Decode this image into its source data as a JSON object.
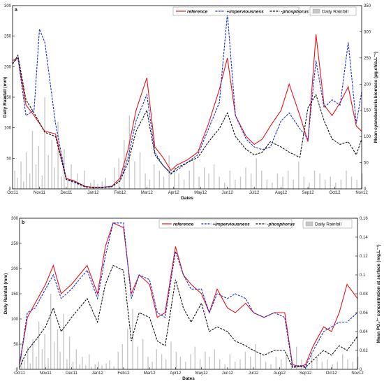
{
  "chart_data": [
    {
      "type": "line",
      "panel_label": "a",
      "xlabel": "Dates",
      "ylabel_left": "Daily Rainfall (mm)",
      "ylabel_right": "Mean cyanobacteria biomass (µg.chla.L⁻¹)",
      "x_ticks": [
        "Oct11",
        "Nov11",
        "Dec11",
        "Jan12",
        "Feb12",
        "Mar12",
        "Apr12",
        "May12",
        "Jun12",
        "Jul12",
        "Aug12",
        "Sep12",
        "Oct12",
        "Nov12"
      ],
      "ylim_left": [
        0,
        300
      ],
      "yticks_left": [
        0,
        50,
        100,
        150,
        200,
        250,
        300
      ],
      "ylim_right": [
        0,
        350
      ],
      "yticks_right": [
        0,
        50,
        100,
        150,
        200,
        250,
        300,
        350
      ],
      "legend": [
        "reference",
        "+imperviousness",
        "-phosphorus",
        "Daily Rainfall"
      ],
      "series": [
        {
          "name": "reference",
          "color": "#e8141b",
          "dash": "solid",
          "axis": "right",
          "x": [
            0,
            0.2,
            0.5,
            0.8,
            1.2,
            1.6,
            2.0,
            2.3,
            2.7,
            3.0,
            3.3,
            3.7,
            4.0,
            4.3,
            4.6,
            5.0,
            5.3,
            5.6,
            5.9,
            6.1,
            6.5,
            6.9,
            7.3,
            7.7,
            8.0,
            8.3,
            8.7,
            9.0,
            9.3,
            9.6,
            10.0,
            10.3,
            10.7,
            11.0,
            11.3,
            11.6,
            11.9,
            12.2,
            12.5,
            12.8,
            13.0
          ],
          "y": [
            245,
            250,
            160,
            140,
            110,
            105,
            20,
            15,
            5,
            3,
            3,
            5,
            20,
            75,
            150,
            212,
            80,
            60,
            35,
            45,
            55,
            70,
            125,
            190,
            250,
            140,
            100,
            85,
            95,
            120,
            150,
            200,
            140,
            90,
            295,
            160,
            140,
            165,
            195,
            120,
            110
          ]
        },
        {
          "name": "+imperviousness",
          "color": "#1a2fd0",
          "dash": "dashed",
          "axis": "right",
          "x": [
            0,
            0.2,
            0.5,
            0.8,
            1.0,
            1.2,
            1.6,
            2.0,
            2.3,
            2.7,
            3.0,
            3.3,
            3.7,
            4.0,
            4.3,
            4.6,
            5.0,
            5.3,
            5.6,
            5.9,
            6.1,
            6.5,
            6.9,
            7.3,
            7.7,
            8.0,
            8.3,
            8.7,
            9.0,
            9.3,
            9.6,
            10.0,
            10.3,
            10.7,
            11.0,
            11.3,
            11.6,
            11.9,
            12.2,
            12.5,
            12.8,
            13.0
          ],
          "y": [
            240,
            250,
            140,
            150,
            305,
            280,
            125,
            18,
            12,
            4,
            2,
            3,
            5,
            15,
            60,
            130,
            180,
            70,
            45,
            30,
            35,
            50,
            65,
            115,
            165,
            335,
            140,
            95,
            80,
            75,
            80,
            130,
            145,
            115,
            95,
            245,
            155,
            170,
            160,
            280,
            125,
            185
          ]
        },
        {
          "name": "-phosphorus",
          "color": "#111111",
          "dash": "dashed",
          "axis": "right",
          "x": [
            0,
            0.2,
            0.5,
            0.8,
            1.2,
            1.6,
            2.0,
            2.3,
            2.7,
            3.0,
            3.3,
            3.7,
            4.0,
            4.3,
            4.6,
            5.0,
            5.3,
            5.6,
            5.9,
            6.1,
            6.5,
            6.9,
            7.3,
            7.7,
            8.0,
            8.3,
            8.7,
            9.0,
            9.3,
            9.6,
            10.0,
            10.3,
            10.7,
            11.0,
            11.3,
            11.6,
            11.9,
            12.2,
            12.5,
            12.8,
            13.0
          ],
          "y": [
            238,
            255,
            170,
            145,
            108,
            100,
            18,
            14,
            4,
            2,
            2,
            4,
            15,
            50,
            110,
            150,
            65,
            45,
            28,
            40,
            50,
            60,
            90,
            115,
            145,
            100,
            75,
            65,
            70,
            90,
            80,
            70,
            60,
            155,
            180,
            130,
            95,
            85,
            90,
            65,
            95
          ]
        }
      ]
    },
    {
      "type": "line",
      "panel_label": "b",
      "xlabel": "Dates",
      "ylabel_left": "Daily Rainfall (mm)",
      "ylabel_right": "Mean PO₄³⁻ concentration at surface (mg.L⁻¹)",
      "x_ticks": [
        "Oct11",
        "Nov11",
        "Dec11",
        "Jan12",
        "Feb12",
        "Mar12",
        "Apr12",
        "May12",
        "Jun12",
        "Jul12",
        "Aug12",
        "Sep12",
        "Oct12",
        "Nov12"
      ],
      "ylim_left": [
        0,
        300
      ],
      "yticks_left": [
        0,
        50,
        100,
        150,
        200,
        250,
        300
      ],
      "ylim_right": [
        0,
        0.16
      ],
      "yticks_right": [
        0,
        0.02,
        0.04,
        0.06,
        0.08,
        0.1,
        0.12,
        0.14,
        0.16
      ],
      "legend": [
        "reference",
        "+imperviousness",
        "-phosphorus",
        "Daily Rainfall"
      ],
      "series": [
        {
          "name": "reference",
          "color": "#e8141b",
          "dash": "solid",
          "axis": "right",
          "x": [
            0,
            0.3,
            0.6,
            1.0,
            1.3,
            1.6,
            2.0,
            2.3,
            2.6,
            3.0,
            3.3,
            3.6,
            4.0,
            4.3,
            4.6,
            5.0,
            5.3,
            5.6,
            6.0,
            6.3,
            6.6,
            7.0,
            7.3,
            7.6,
            8.0,
            8.3,
            8.7,
            9.0,
            9.4,
            9.8,
            10.2,
            10.5,
            10.8,
            11.0,
            11.3,
            11.7,
            12.0,
            12.3,
            12.6,
            13.0
          ],
          "y": [
            0.005,
            0.055,
            0.07,
            0.09,
            0.11,
            0.08,
            0.09,
            0.1,
            0.11,
            0.08,
            0.13,
            0.155,
            0.15,
            0.08,
            0.1,
            0.09,
            0.055,
            0.06,
            0.13,
            0.1,
            0.09,
            0.08,
            0.06,
            0.085,
            0.065,
            0.06,
            0.07,
            0.06,
            0.055,
            0.06,
            0.06,
            0.005,
            0.003,
            0.005,
            0.025,
            0.045,
            0.04,
            0.06,
            0.09,
            0.075
          ]
        },
        {
          "name": "+imperviousness",
          "color": "#1a2fd0",
          "dash": "dashed",
          "axis": "right",
          "x": [
            0,
            0.3,
            0.6,
            1.0,
            1.3,
            1.6,
            2.0,
            2.3,
            2.6,
            3.0,
            3.3,
            3.6,
            4.0,
            4.3,
            4.6,
            5.0,
            5.3,
            5.6,
            6.0,
            6.3,
            6.6,
            7.0,
            7.3,
            7.6,
            8.0,
            8.3,
            8.7,
            9.0,
            9.4,
            9.8,
            10.2,
            10.5,
            10.8,
            11.0,
            11.3,
            11.7,
            12.0,
            12.3,
            12.6,
            13.0
          ],
          "y": [
            0.005,
            0.06,
            0.065,
            0.085,
            0.1,
            0.075,
            0.085,
            0.095,
            0.105,
            0.075,
            0.12,
            0.155,
            0.155,
            0.075,
            0.1,
            0.095,
            0.06,
            0.055,
            0.125,
            0.1,
            0.085,
            0.085,
            0.06,
            0.08,
            0.075,
            0.08,
            0.075,
            0.06,
            0.055,
            0.06,
            0.055,
            0.003,
            0.004,
            0.003,
            0.02,
            0.04,
            0.045,
            0.05,
            0.05,
            0.06
          ]
        },
        {
          "name": "-phosphorus",
          "color": "#111111",
          "dash": "dashed",
          "axis": "right",
          "x": [
            0,
            0.3,
            0.6,
            1.0,
            1.3,
            1.6,
            2.0,
            2.3,
            2.6,
            3.0,
            3.3,
            3.6,
            4.0,
            4.3,
            4.6,
            5.0,
            5.3,
            5.6,
            6.0,
            6.3,
            6.6,
            7.0,
            7.3,
            7.6,
            8.0,
            8.3,
            8.7,
            9.0,
            9.4,
            9.8,
            10.2,
            10.5,
            10.8,
            11.0,
            11.3,
            11.7,
            12.0,
            12.3,
            12.6,
            13.0
          ],
          "y": [
            0.002,
            0.02,
            0.03,
            0.045,
            0.065,
            0.04,
            0.055,
            0.065,
            0.075,
            0.05,
            0.09,
            0.11,
            0.105,
            0.03,
            0.06,
            0.055,
            0.03,
            0.025,
            0.095,
            0.065,
            0.05,
            0.07,
            0.04,
            0.045,
            0.04,
            0.03,
            0.025,
            0.02,
            0.015,
            0.02,
            0.02,
            0.002,
            0.003,
            0.002,
            0.01,
            0.02,
            0.015,
            0.025,
            0.02,
            0.035
          ]
        }
      ]
    }
  ],
  "rainfall_bars": {
    "color": "#c8c8c8",
    "series_name": "Daily Rainfall",
    "days": [
      2,
      5,
      9,
      12,
      15,
      19,
      22,
      26,
      29,
      33,
      36,
      40,
      44,
      47,
      51,
      55,
      58,
      62,
      66,
      70,
      73,
      77,
      81,
      84,
      88,
      92,
      96,
      101,
      105,
      110,
      115,
      120,
      126,
      132,
      138,
      144,
      150,
      155,
      160,
      166,
      171,
      177,
      183,
      188,
      194,
      200,
      205,
      211,
      217,
      222,
      228,
      234,
      240,
      246,
      252,
      258,
      264,
      270,
      276,
      282,
      288,
      294,
      300,
      306,
      312,
      318,
      324,
      330,
      336,
      342,
      348,
      354,
      360,
      366,
      372,
      378,
      384,
      390,
      396
    ],
    "values_mm": [
      30,
      18,
      45,
      12,
      60,
      25,
      95,
      40,
      70,
      22,
      150,
      55,
      80,
      35,
      110,
      20,
      65,
      15,
      40,
      10,
      25,
      8,
      30,
      5,
      10,
      15,
      8,
      12,
      18,
      6,
      35,
      50,
      80,
      120,
      45,
      60,
      25,
      15,
      40,
      30,
      20,
      55,
      35,
      25,
      15,
      30,
      45,
      20,
      35,
      25,
      40,
      20,
      10,
      30,
      15,
      20,
      35,
      25,
      50,
      30,
      15,
      10,
      25,
      20,
      30,
      15,
      45,
      20,
      10,
      30,
      25,
      15,
      20,
      10,
      15,
      30,
      20,
      15,
      25
    ]
  }
}
